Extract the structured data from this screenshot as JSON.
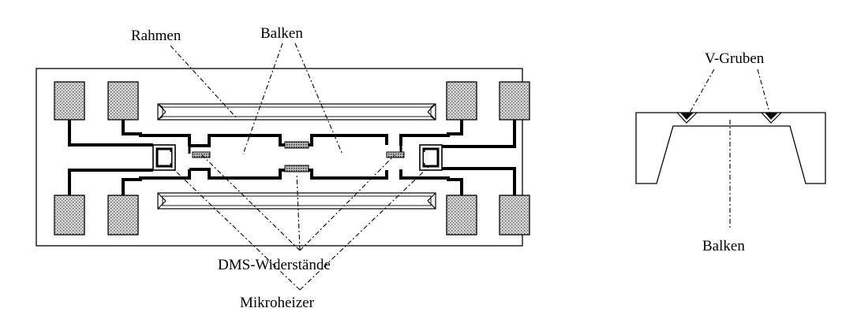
{
  "labels": {
    "rahmen": "Rahmen",
    "balken_top": "Balken",
    "dms": "DMS-Widerstände",
    "mikroheizer": "Mikroheizer",
    "v_gruben": "V-Gruben",
    "balken_section": "Balken"
  }
}
